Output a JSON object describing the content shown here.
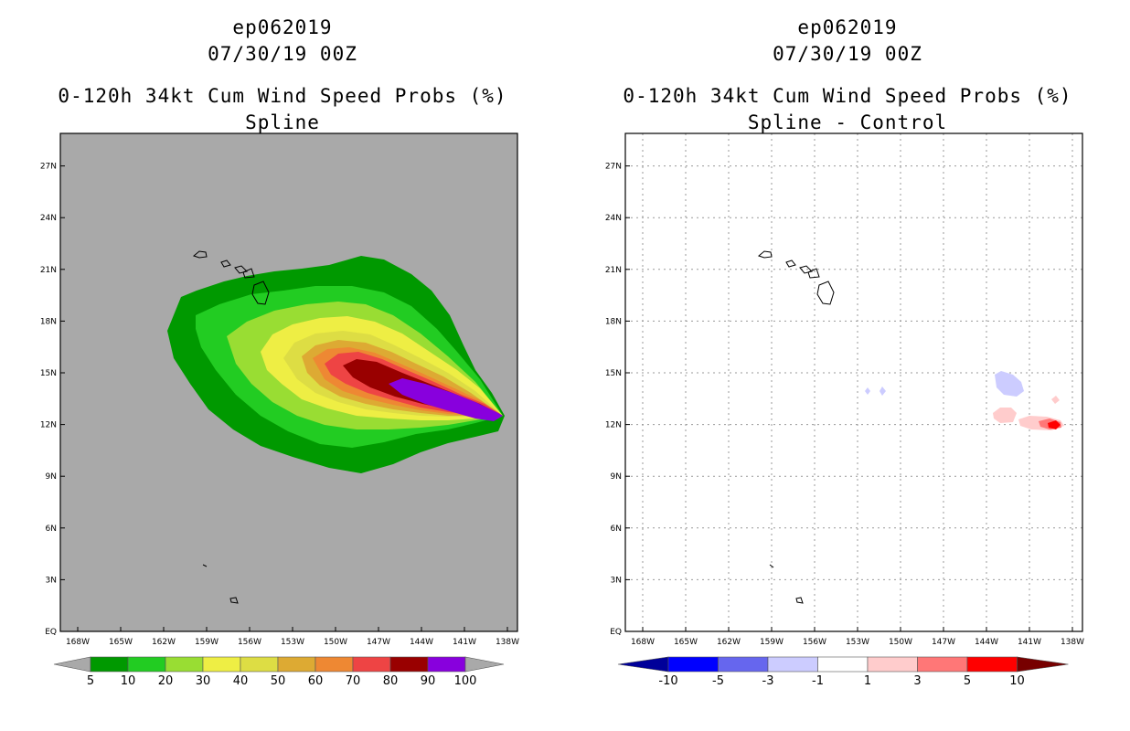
{
  "left": {
    "title_line1": "ep062019",
    "title_line2": "07/30/19 00Z",
    "title_line3": "0-120h 34kt Cum Wind Speed Probs (%)",
    "title_line4": "Spline",
    "background_color": "#a9a9a9",
    "colorbar": {
      "labels": [
        "5",
        "10",
        "20",
        "30",
        "40",
        "50",
        "60",
        "70",
        "80",
        "90",
        "100"
      ],
      "colors": [
        "#009900",
        "#22cc22",
        "#99dd33",
        "#eeee44",
        "#dddd44",
        "#ddaa33",
        "#ee8833",
        "#ee4444",
        "#990000",
        "#8800dd"
      ]
    }
  },
  "right": {
    "title_line1": "ep062019",
    "title_line2": "07/30/19 00Z",
    "title_line3": "0-120h 34kt Cum Wind Speed Probs (%)",
    "title_line4": "Spline - Control",
    "background_color": "#ffffff",
    "colorbar": {
      "labels": [
        "-10",
        "-5",
        "-3",
        "-1",
        "1",
        "3",
        "5",
        "10"
      ],
      "colors": [
        "#0000ff",
        "#6666ee",
        "#ccccff",
        "#ffffff",
        "#ffcccc",
        "#ff7777",
        "#ff0000"
      ],
      "end_left": "#000099",
      "end_right": "#770000"
    }
  },
  "lat_labels": [
    "EQ",
    "3N",
    "6N",
    "9N",
    "12N",
    "15N",
    "18N",
    "21N",
    "24N",
    "27N"
  ],
  "lon_labels": [
    "168W",
    "165W",
    "162W",
    "159W",
    "156W",
    "153W",
    "150W",
    "147W",
    "144W",
    "141W",
    "138W"
  ]
}
